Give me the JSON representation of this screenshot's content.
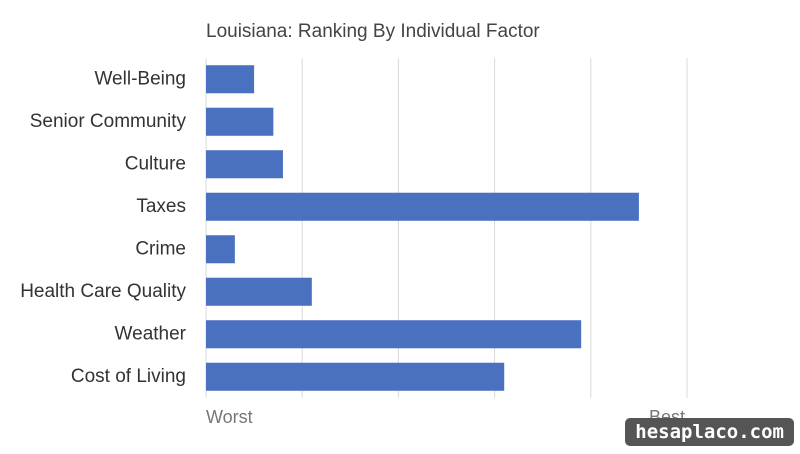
{
  "chart_data": {
    "type": "bar",
    "orientation": "horizontal",
    "title": "Louisiana: Ranking By Individual Factor",
    "categories": [
      "Well-Being",
      "Senior Community",
      "Culture",
      "Taxes",
      "Crime",
      "Health Care Quality",
      "Weather",
      "Cost of Living"
    ],
    "values": [
      5,
      7,
      8,
      45,
      3,
      11,
      39,
      31
    ],
    "color": "#4a71c0",
    "xlim": [
      0,
      50
    ],
    "xticks": [
      0,
      10,
      20,
      30,
      40,
      50
    ],
    "grid": true,
    "axis_end_labels": [
      "Worst",
      "Best"
    ]
  },
  "watermark": "hesaplaco.com"
}
